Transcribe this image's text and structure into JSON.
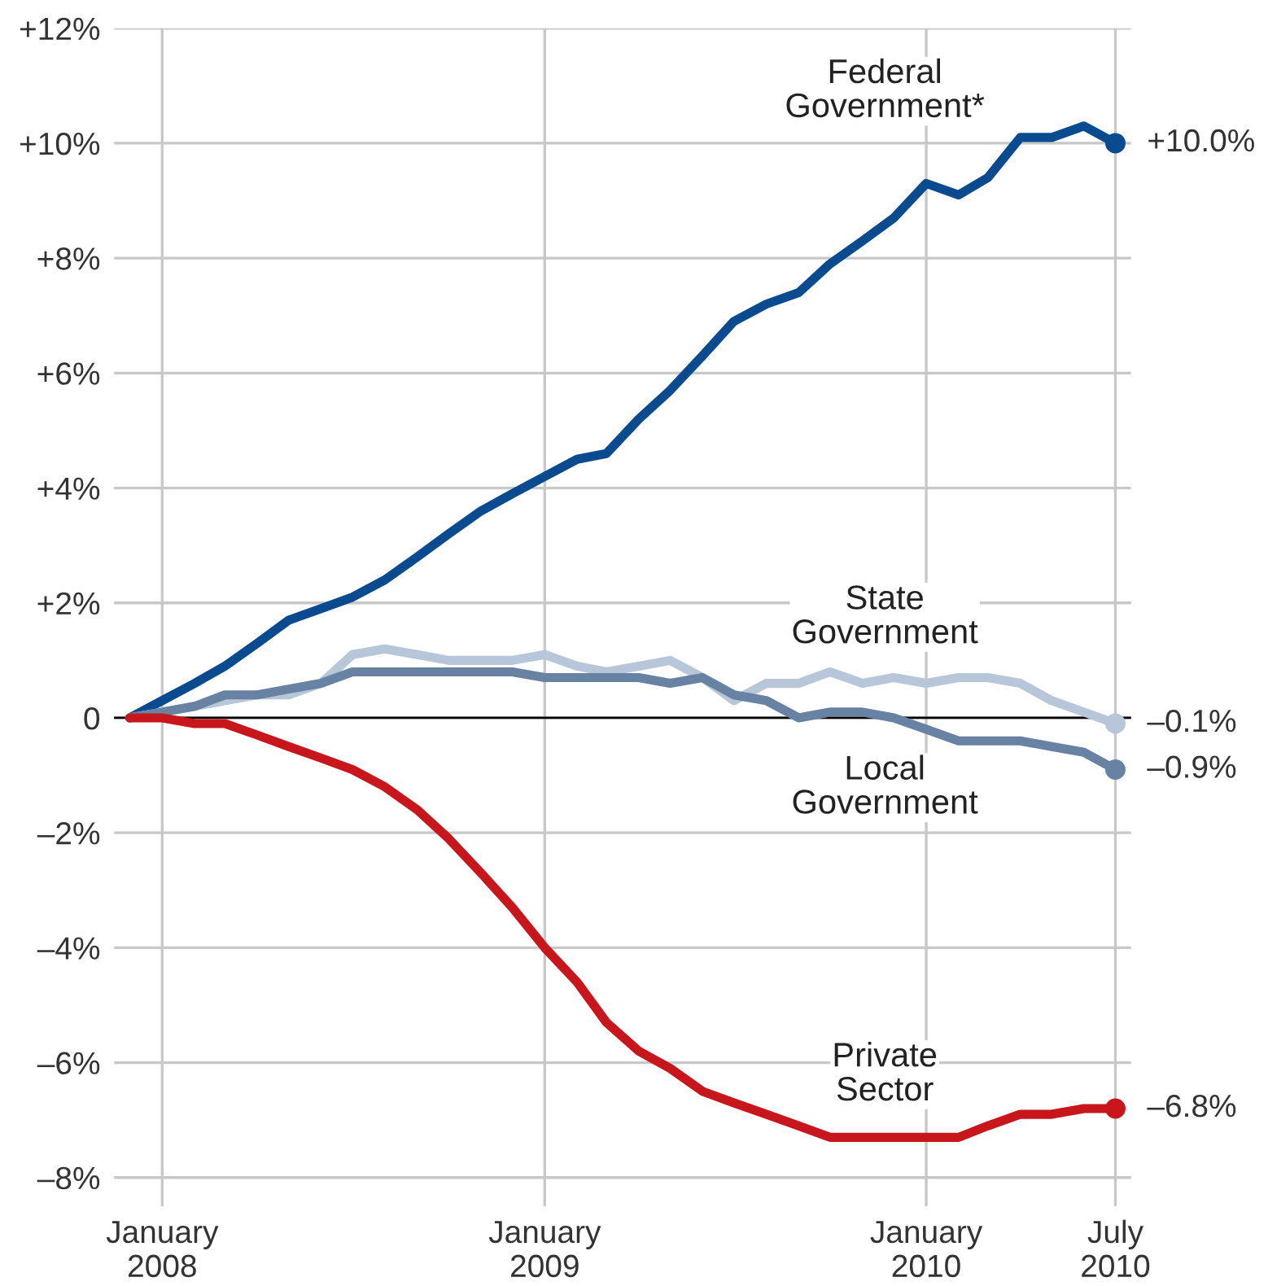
{
  "chart_data": {
    "type": "line",
    "x": [
      "2007-12",
      "2008-01",
      "2008-02",
      "2008-03",
      "2008-04",
      "2008-05",
      "2008-06",
      "2008-07",
      "2008-08",
      "2008-09",
      "2008-10",
      "2008-11",
      "2008-12",
      "2009-01",
      "2009-02",
      "2009-03",
      "2009-04",
      "2009-05",
      "2009-06",
      "2009-07",
      "2009-08",
      "2009-09",
      "2009-10",
      "2009-11",
      "2009-12",
      "2010-01",
      "2010-02",
      "2010-03",
      "2010-04",
      "2010-05",
      "2010-06",
      "2010-07"
    ],
    "series": [
      {
        "name": "Federal\nGovernment*",
        "color": "#0a4a8f",
        "values": [
          0,
          0.3,
          0.6,
          0.9,
          1.3,
          1.7,
          1.9,
          2.1,
          2.4,
          2.8,
          3.2,
          3.6,
          3.9,
          4.2,
          4.5,
          4.6,
          5.2,
          5.7,
          6.3,
          6.9,
          7.2,
          7.4,
          7.9,
          8.3,
          8.7,
          9.3,
          9.1,
          9.4,
          10.1,
          10.1,
          10.3,
          10.0
        ]
      },
      {
        "name": "State\nGovernment",
        "color": "#b8c6d9",
        "values": [
          0,
          0.1,
          0.2,
          0.3,
          0.4,
          0.4,
          0.6,
          1.1,
          1.2,
          1.1,
          1.0,
          1.0,
          1.0,
          1.1,
          0.9,
          0.8,
          0.9,
          1.0,
          0.7,
          0.3,
          0.6,
          0.6,
          0.8,
          0.6,
          0.7,
          0.6,
          0.7,
          0.7,
          0.6,
          0.3,
          0.1,
          -0.1
        ]
      },
      {
        "name": "Local\nGovernment",
        "color": "#6882a3",
        "values": [
          0,
          0.1,
          0.2,
          0.4,
          0.4,
          0.5,
          0.6,
          0.8,
          0.8,
          0.8,
          0.8,
          0.8,
          0.8,
          0.7,
          0.7,
          0.7,
          0.7,
          0.6,
          0.7,
          0.4,
          0.3,
          0.0,
          0.1,
          0.1,
          0.0,
          -0.2,
          -0.4,
          -0.4,
          -0.4,
          -0.5,
          -0.6,
          -0.9
        ]
      },
      {
        "name": "Private\nSector",
        "color": "#c8161d",
        "values": [
          0,
          0,
          -0.1,
          -0.1,
          -0.3,
          -0.5,
          -0.7,
          -0.9,
          -1.2,
          -1.6,
          -2.1,
          -2.7,
          -3.3,
          -4.0,
          -4.6,
          -5.3,
          -5.8,
          -6.1,
          -6.5,
          -6.7,
          -6.9,
          -7.1,
          -7.3,
          -7.3,
          -7.3,
          -7.3,
          -7.3,
          -7.1,
          -6.9,
          -6.9,
          -6.8,
          -6.8
        ]
      }
    ],
    "annotations": [
      {
        "text": "+10.0%",
        "x": "2010-07",
        "y": 10.0
      },
      {
        "text": "–0.1%",
        "x": "2010-07",
        "y": -0.1
      },
      {
        "text": "–0.9%",
        "x": "2010-07",
        "y": -0.9
      },
      {
        "text": "–6.8%",
        "x": "2010-07",
        "y": -6.8
      }
    ],
    "xlim": [
      "2007-11-16",
      "2010-07-16"
    ],
    "xticks": [
      {
        "value": "2008-01",
        "label": "January\n2008"
      },
      {
        "value": "2009-01",
        "label": "January\n2009"
      },
      {
        "value": "2010-01",
        "label": "January\n2010"
      },
      {
        "value": "2010-07",
        "label": "July\n2010"
      }
    ],
    "ylim": [
      -8.5,
      12
    ],
    "yticks": [
      {
        "value": -8,
        "label": "–8%"
      },
      {
        "value": -6,
        "label": "–6%"
      },
      {
        "value": -4,
        "label": "–4%"
      },
      {
        "value": -2,
        "label": "–2%"
      },
      0,
      {
        "value": 2,
        "label": "+2%"
      },
      {
        "value": 4,
        "label": "+4%"
      },
      {
        "value": 6,
        "label": "+6%"
      },
      {
        "value": 8,
        "label": "+8%"
      },
      {
        "value": 10,
        "label": "+10%"
      },
      {
        "value": 12,
        "label": "+12%"
      }
    ],
    "ref_lines": [
      {
        "axis": "y",
        "value": 0,
        "color": "#000000"
      }
    ],
    "grid": true,
    "legend": false,
    "line_style": "solid"
  }
}
